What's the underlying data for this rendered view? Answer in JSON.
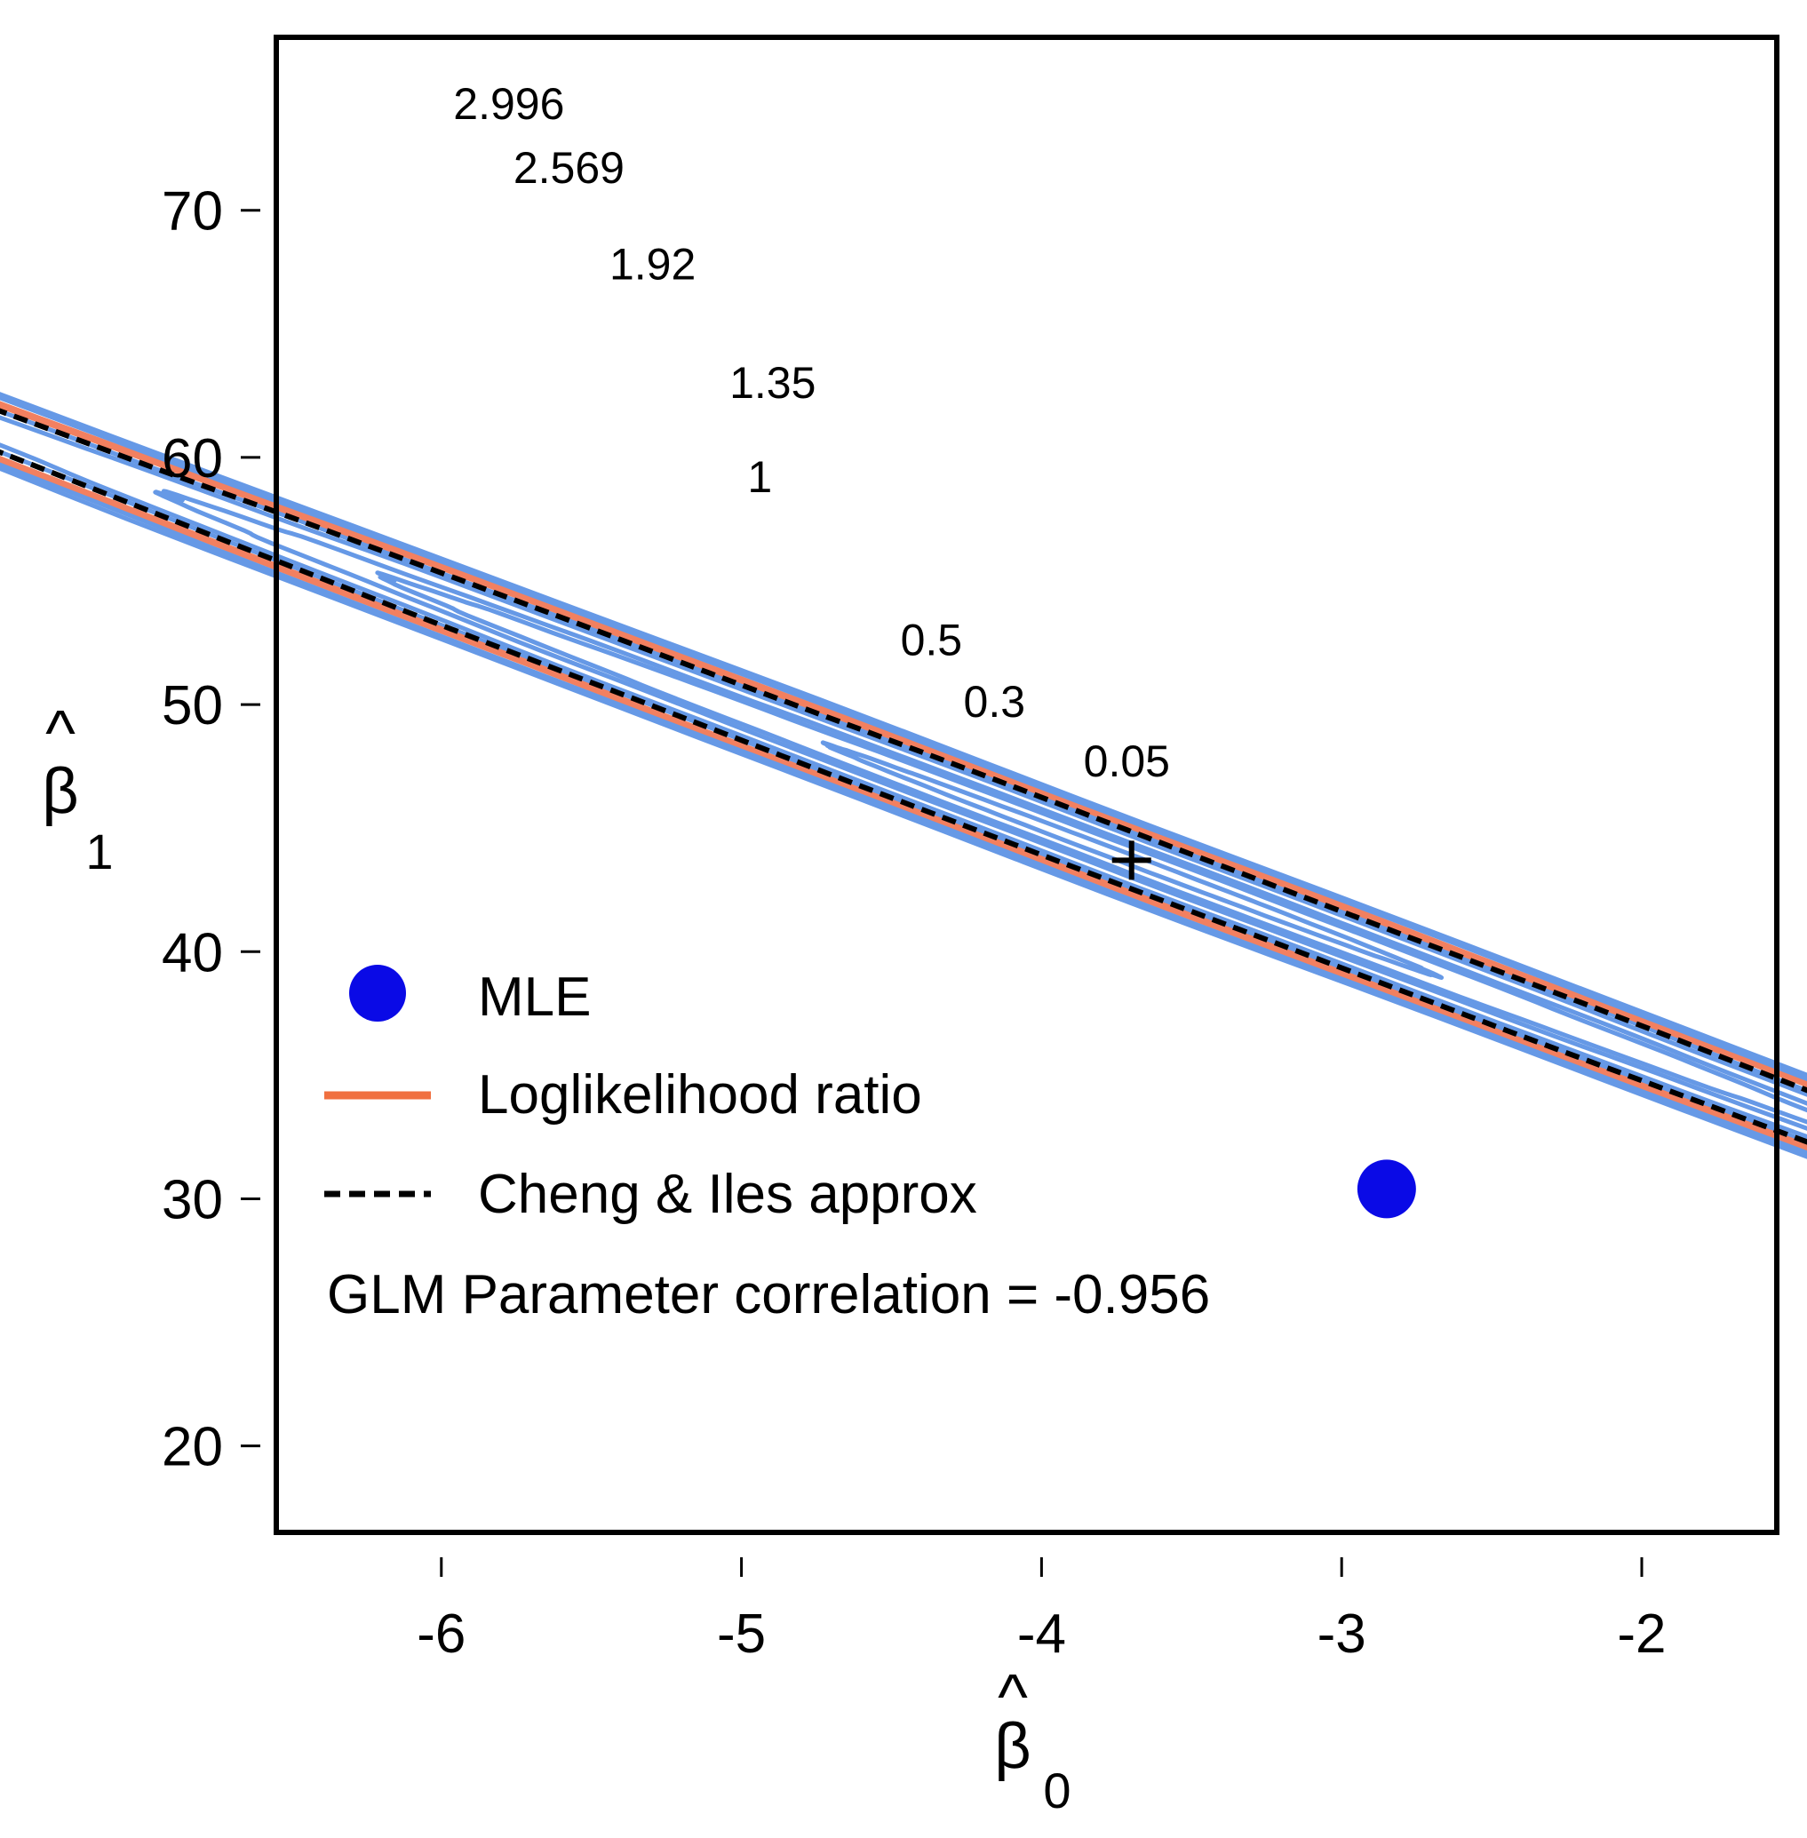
{
  "chart_data": {
    "type": "contour",
    "title": "",
    "xlabel": "β̂0",
    "ylabel": "β̂1",
    "x_axis": {
      "label_symbol": "β",
      "label_hat": "^",
      "label_subscript": "0",
      "xlim": [
        -6.55,
        -1.55
      ],
      "ticks": [
        -6,
        -5,
        -4,
        -3,
        -2
      ],
      "tick_labels": [
        "-6",
        "-5",
        "-4",
        "-3",
        "-2"
      ]
    },
    "y_axis": {
      "label_symbol": "β",
      "label_hat": "^",
      "label_subscript": "1",
      "ylim": [
        16.5,
        77
      ],
      "ticks": [
        20,
        30,
        40,
        50,
        60,
        70
      ],
      "tick_labels": [
        "20",
        "30",
        "40",
        "50",
        "60",
        "70"
      ]
    },
    "center": {
      "x": -3.7,
      "y": 43.7
    },
    "ellipse_shape": {
      "u_dir": [
        0.2121,
        -0.9772
      ],
      "v_dir": [
        0.9772,
        0.2121
      ],
      "u_scale": 21.5,
      "v_scale": 0.21
    },
    "contours": [
      {
        "level": 0.05,
        "label": "0.05",
        "color": "#6699e6",
        "style": "solid",
        "label_x": -3.86,
        "label_y": 47.1
      },
      {
        "level": 0.3,
        "label": "0.3",
        "color": "#6699e6",
        "style": "solid",
        "label_x": -4.26,
        "label_y": 49.5
      },
      {
        "level": 0.5,
        "label": "0.5",
        "color": "#6699e6",
        "style": "solid",
        "label_x": -4.47,
        "label_y": 52.0
      },
      {
        "level": 1,
        "label": "1",
        "color": "#6699e6",
        "style": "solid",
        "label_x": -4.98,
        "label_y": 58.6
      },
      {
        "level": 1.35,
        "label": "1.35",
        "color": "#6699e6",
        "style": "solid",
        "label_x": -5.04,
        "label_y": 62.4
      },
      {
        "level": 1.92,
        "label": "1.92",
        "color": "#f28060",
        "style": "solid",
        "label_x": -5.44,
        "label_y": 67.2
      },
      {
        "level": 2.569,
        "label": "2.569",
        "color": "#6699e6",
        "style": "solid",
        "label_x": -5.76,
        "label_y": 71.1
      },
      {
        "level": 2.996,
        "label": "2.996",
        "color": "#6699e6",
        "style": "solid",
        "label_x": -5.96,
        "label_y": 73.7
      }
    ],
    "approx_contour": {
      "name": "Cheng & Iles approx",
      "level": 1.35,
      "color": "#000000",
      "style": "dashed"
    },
    "mle_point": {
      "x": -2.85,
      "y": 30.4,
      "color": "#0a0ae6"
    },
    "center_marker": {
      "x": -3.7,
      "y": 43.7,
      "symbol": "+"
    },
    "legend": {
      "position": "bottom-left",
      "items": [
        {
          "label": "MLE",
          "type": "point",
          "color": "#0a0ae6"
        },
        {
          "label": "Loglikelihood ratio",
          "type": "line",
          "color": "#f07040"
        },
        {
          "label": "Cheng & Iles approx",
          "type": "dashed",
          "color": "#000000"
        }
      ],
      "note": "GLM Parameter correlation = -0.956"
    }
  }
}
